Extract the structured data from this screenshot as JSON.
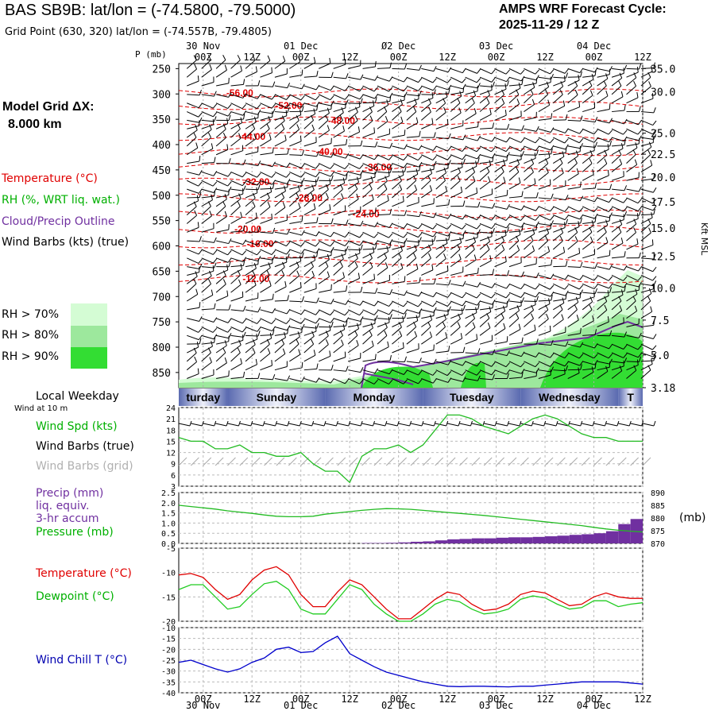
{
  "header": {
    "title": "BAS SB9B:  lat/lon = (-74.5800, -79.5000)",
    "subtitle": "Grid Point (630, 320) lat/lon = (-74.557B, -79.4805)",
    "cycle_line1": "AMPS WRF Forecast Cycle:",
    "cycle_line2": "2025-11-29 / 12  Z",
    "model_grid_label": "Model Grid ΔX:",
    "model_grid_value": "8.000 km"
  },
  "legend": {
    "temperature": "Temperature (°C)",
    "rh": "RH (%, WRT liq. wat.)",
    "cloud": "Cloud/Precip Outline",
    "wind": "Wind Barbs (kts) (true)",
    "rh_levels": [
      {
        "label": "RH > 70%",
        "color": "#d4fcd4"
      },
      {
        "label": "RH > 80%",
        "color": "#9de89d"
      },
      {
        "label": "RH > 90%",
        "color": "#33dd33"
      }
    ],
    "local_weekday": "Local Weekday",
    "wind_at": "Wind at 10 m",
    "wind_spd": "Wind Spd (kts)",
    "wind_barbs_true": "Wind Barbs (true)",
    "wind_barbs_grid": "Wind Barbs (grid)",
    "precip1": "Precip (mm)",
    "precip2": "liq. equiv.",
    "precip3": "3-hr accum",
    "pressure": "Pressure (mb)",
    "pressure_unit": "(mb)",
    "temp2": "Temperature (°C)",
    "dewpoint": "Dewpoint (°C)",
    "windchill": "Wind Chill T (°C)",
    "kft": "Kft MSL"
  },
  "time_axis": {
    "dates": [
      {
        "label": "30 Nov",
        "hour": 0
      },
      {
        "label": "01 Dec",
        "hour": 24
      },
      {
        "label": "02 Dec",
        "hour": 48
      },
      {
        "label": "03 Dec",
        "hour": 72
      },
      {
        "label": "04 Dec",
        "hour": 96
      }
    ],
    "top_date_labels": [
      "30 Nov",
      "01 Dec",
      "Ø2 Dec",
      "03 Dec",
      "04 Dec"
    ],
    "bottom_date_labels": [
      "30 Nov",
      "01 Dec",
      "02 Dec",
      "03 Dec",
      "04 Dec"
    ],
    "hour_labels": [
      "00Z",
      "12Z",
      "00Z",
      "12Z",
      "00Z",
      "12Z",
      "00Z",
      "12Z",
      "00Z",
      "12Z"
    ],
    "hour_values": [
      0,
      12,
      24,
      36,
      48,
      60,
      72,
      84,
      96,
      108
    ],
    "start_hour": -6,
    "end_hour": 108
  },
  "weekdays": [
    {
      "label": "Saturday",
      "shown": "turday",
      "start": -6,
      "end": 6
    },
    {
      "label": "Sunday",
      "shown": "Sunday",
      "start": 6,
      "end": 30
    },
    {
      "label": "Monday",
      "shown": "Monday",
      "start": 30,
      "end": 54
    },
    {
      "label": "Tuesday",
      "shown": "Tuesday",
      "start": 54,
      "end": 78
    },
    {
      "label": "Wednesday",
      "shown": "Wednesday",
      "start": 78,
      "end": 102
    },
    {
      "label": "Thursday",
      "shown": "T",
      "start": 102,
      "end": 108
    }
  ],
  "chart_data": [
    {
      "type": "line",
      "name": "cross-section",
      "ylabel": "P (mb)",
      "y_ticks": [
        250,
        300,
        350,
        400,
        450,
        500,
        550,
        600,
        650,
        700,
        750,
        800,
        850
      ],
      "y_tick_labels": [
        "250",
        "300",
        "350",
        "400",
        "450",
        "500",
        "550",
        "600",
        "650",
        "700",
        "750",
        "800",
        "850"
      ],
      "ylim": [
        240,
        880
      ],
      "kft_ticks": [
        {
          "label": "35.0",
          "p": 245
        },
        {
          "label": "30.0",
          "p": 280
        },
        {
          "label": "25.0",
          "p": 343
        },
        {
          "label": "22.5",
          "p": 375
        },
        {
          "label": "20.0",
          "p": 410
        },
        {
          "label": "17.5",
          "p": 447
        },
        {
          "label": "15.0",
          "p": 487
        },
        {
          "label": "12.5",
          "p": 530
        },
        {
          "label": "10.0",
          "p": 578
        },
        {
          "label": "7.5",
          "p": 627
        },
        {
          "label": "5.0",
          "p": 680
        },
        {
          "label": "3.18",
          "p": 722
        }
      ],
      "isotherm_labels": [
        {
          "text": "-56.00",
          "hour": 9,
          "p": 298
        },
        {
          "text": "-52.00",
          "hour": 21,
          "p": 323
        },
        {
          "text": "-48.00",
          "hour": 34,
          "p": 353
        },
        {
          "text": "-44.00",
          "hour": 12,
          "p": 384
        },
        {
          "text": "-40.00",
          "hour": 31,
          "p": 414
        },
        {
          "text": "-36.00",
          "hour": 43,
          "p": 445
        },
        {
          "text": "-32.00",
          "hour": 13,
          "p": 474
        },
        {
          "text": "-28.00",
          "hour": 26,
          "p": 505
        },
        {
          "text": "-24.00",
          "hour": 40,
          "p": 537
        },
        {
          "text": "-20.00",
          "hour": 11,
          "p": 567
        },
        {
          "text": "-16.00",
          "hour": 14,
          "p": 596
        },
        {
          "text": "-12.00",
          "hour": 13,
          "p": 665
        }
      ]
    },
    {
      "type": "line",
      "name": "wind",
      "ylim": [
        3,
        24
      ],
      "y_ticks": [
        24,
        21,
        18,
        15,
        12,
        9,
        6,
        3
      ],
      "x": [
        -6,
        -3,
        0,
        3,
        6,
        9,
        12,
        15,
        18,
        21,
        24,
        27,
        30,
        33,
        36,
        39,
        42,
        45,
        48,
        51,
        54,
        57,
        60,
        63,
        66,
        69,
        72,
        75,
        78,
        81,
        84,
        87,
        90,
        93,
        96,
        99,
        102,
        105,
        108
      ],
      "series": [
        {
          "values": [
            16,
            15,
            15,
            13,
            13,
            14,
            12,
            12,
            11,
            11,
            12,
            9,
            7,
            7,
            4,
            11,
            13,
            13,
            14,
            12,
            14,
            18,
            22,
            22,
            21,
            19,
            18,
            17,
            19,
            21,
            22,
            21,
            19,
            17,
            16,
            16,
            15,
            15,
            15
          ],
          "color": "#22bb22"
        }
      ]
    },
    {
      "type": "bar",
      "name": "precip-pressure",
      "precip_ylim": [
        0,
        2.5
      ],
      "precip_ticks": [
        2.5,
        2.0,
        1.5,
        1.0,
        0.5,
        0.0
      ],
      "pressure_ylim": [
        870,
        890
      ],
      "pressure_ticks": [
        890,
        885,
        880,
        875,
        870
      ],
      "x": [
        -6,
        -3,
        0,
        3,
        6,
        9,
        12,
        15,
        18,
        21,
        24,
        27,
        30,
        33,
        36,
        39,
        42,
        45,
        48,
        51,
        54,
        57,
        60,
        63,
        66,
        69,
        72,
        75,
        78,
        81,
        84,
        87,
        90,
        93,
        96,
        99,
        102,
        105,
        108
      ],
      "series": [
        {
          "name": "Precip (mm)",
          "values": [
            0,
            0,
            0,
            0,
            0,
            0,
            0,
            0,
            0,
            0,
            0,
            0,
            0,
            0,
            0,
            0,
            0.02,
            0.02,
            0.03,
            0.05,
            0.08,
            0.1,
            0.15,
            0.2,
            0.22,
            0.25,
            0.25,
            0.28,
            0.3,
            0.3,
            0.32,
            0.35,
            0.38,
            0.42,
            0.45,
            0.5,
            0.6,
            0.95,
            1.2
          ],
          "color": "#7030a0"
        },
        {
          "name": "Pressure (mb)",
          "values": [
            885,
            884.5,
            884,
            883.5,
            882.8,
            882.3,
            881.8,
            881.2,
            880.7,
            880.5,
            880.5,
            880.7,
            881.5,
            882,
            882.5,
            883,
            883.4,
            883.7,
            883.6,
            883.4,
            883,
            882.6,
            882.2,
            881.8,
            881.4,
            881,
            880.5,
            880,
            879.5,
            879,
            878.5,
            878,
            877.5,
            877,
            876.3,
            875.7,
            875.2,
            874.8,
            874.5
          ],
          "color": "#22bb22"
        }
      ]
    },
    {
      "type": "line",
      "name": "temperature",
      "ylim": [
        -20,
        -5
      ],
      "y_ticks": [
        -5,
        -10,
        -15,
        -20
      ],
      "x": [
        -6,
        -3,
        0,
        3,
        6,
        9,
        12,
        15,
        18,
        21,
        24,
        27,
        30,
        33,
        36,
        39,
        42,
        45,
        48,
        51,
        54,
        57,
        60,
        63,
        66,
        69,
        72,
        75,
        78,
        81,
        84,
        87,
        90,
        93,
        96,
        99,
        102,
        105,
        108
      ],
      "series": [
        {
          "name": "Temperature (°C)",
          "values": [
            -10.5,
            -10.2,
            -11,
            -13.5,
            -15.5,
            -14.5,
            -11.5,
            -9.5,
            -8.8,
            -10.5,
            -14.5,
            -17,
            -17,
            -14,
            -11.5,
            -12.5,
            -15,
            -17.5,
            -19.5,
            -19.5,
            -17.5,
            -15.5,
            -14,
            -14.5,
            -16.5,
            -17.8,
            -17.5,
            -16.5,
            -14.5,
            -13.8,
            -14.2,
            -15.5,
            -16.8,
            -16.5,
            -15,
            -14.2,
            -15,
            -15.3,
            -15.3
          ],
          "color": "#e00000"
        },
        {
          "name": "Dewpoint (°C)",
          "values": [
            -13.5,
            -12.5,
            -12.5,
            -15,
            -17.5,
            -17,
            -14.5,
            -12.3,
            -11.8,
            -13.5,
            -17.5,
            -18.5,
            -18.5,
            -15.5,
            -12.5,
            -13.5,
            -16.5,
            -18.5,
            -20,
            -20,
            -18.5,
            -16.5,
            -15.5,
            -16,
            -17.5,
            -18.5,
            -18.2,
            -17.5,
            -15.5,
            -14.8,
            -15.2,
            -16.5,
            -17.5,
            -17.2,
            -15.8,
            -15.8,
            -17,
            -16.5,
            -16.2
          ],
          "color": "#22cc22"
        }
      ]
    },
    {
      "type": "line",
      "name": "windchill",
      "ylim": [
        -40,
        -10
      ],
      "y_ticks": [
        -10,
        -15,
        -20,
        -25,
        -30,
        -35,
        -40
      ],
      "x": [
        -6,
        -3,
        0,
        3,
        6,
        9,
        12,
        15,
        18,
        21,
        24,
        27,
        30,
        33,
        36,
        39,
        42,
        45,
        48,
        51,
        54,
        57,
        60,
        63,
        66,
        69,
        72,
        75,
        78,
        81,
        84,
        87,
        90,
        93,
        96,
        99,
        102,
        105,
        108
      ],
      "series": [
        {
          "name": "Wind Chill T (°C)",
          "values": [
            -26,
            -25,
            -27,
            -29,
            -30.5,
            -29,
            -26,
            -24,
            -20,
            -19,
            -21.5,
            -21,
            -17,
            -14,
            -22,
            -25,
            -28,
            -30.5,
            -32,
            -33.5,
            -35,
            -36,
            -37,
            -37.2,
            -37,
            -37,
            -37.2,
            -37.3,
            -37,
            -37,
            -36.5,
            -36,
            -35.5,
            -35,
            -35,
            -35,
            -35,
            -35.5,
            -36
          ],
          "color": "#0000cc"
        }
      ]
    }
  ]
}
